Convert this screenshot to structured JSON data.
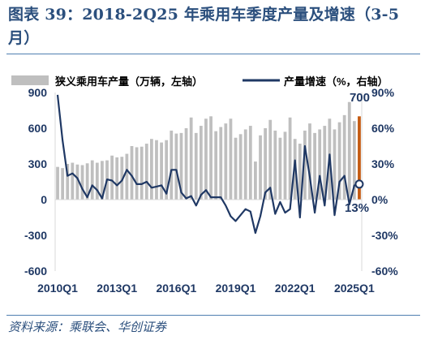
{
  "title": "图表 39：2018-2Q25 年乘用车季度产量及增速（3-5月）",
  "source": "资料来源：乘联会、华创证券",
  "colors": {
    "title": "#2b4f7d",
    "bars": "#bfbfbf",
    "latest_bar": "#c55a11",
    "line": "#1f3864",
    "axis_text": "#1f3864"
  },
  "chart_data": {
    "type": "bar+line",
    "title": "",
    "legend": {
      "position": "top",
      "items": [
        {
          "name": "狭义乘用车产量（万辆，左轴）",
          "kind": "bar"
        },
        {
          "name": "产量增速（%，右轴）",
          "kind": "line"
        }
      ]
    },
    "x_tick_labels": [
      "2010Q1",
      "2013Q1",
      "2016Q1",
      "2019Q1",
      "2022Q1",
      "2025Q1"
    ],
    "left_axis": {
      "min": -600,
      "max": 900,
      "ticks": [
        -600,
        -300,
        0,
        300,
        600,
        900
      ]
    },
    "right_axis": {
      "min": -60,
      "max": 90,
      "ticks": [
        "-60%",
        "-30%",
        "0%",
        "30%",
        "60%",
        "90%"
      ]
    },
    "grid": false,
    "categories": [
      "2010Q1",
      "2010Q2",
      "2010Q3",
      "2010Q4",
      "2011Q1",
      "2011Q2",
      "2011Q3",
      "2011Q4",
      "2012Q1",
      "2012Q2",
      "2012Q3",
      "2012Q4",
      "2013Q1",
      "2013Q2",
      "2013Q3",
      "2013Q4",
      "2014Q1",
      "2014Q2",
      "2014Q3",
      "2014Q4",
      "2015Q1",
      "2015Q2",
      "2015Q3",
      "2015Q4",
      "2016Q1",
      "2016Q2",
      "2016Q3",
      "2016Q4",
      "2017Q1",
      "2017Q2",
      "2017Q3",
      "2017Q4",
      "2018Q1",
      "2018Q2",
      "2018Q3",
      "2018Q4",
      "2019Q1",
      "2019Q2",
      "2019Q3",
      "2019Q4",
      "2020Q1",
      "2020Q2",
      "2020Q3",
      "2020Q4",
      "2021Q1",
      "2021Q2",
      "2021Q3",
      "2021Q4",
      "2022Q1",
      "2022Q2",
      "2022Q3",
      "2022Q4",
      "2023Q1",
      "2023Q2",
      "2023Q3",
      "2023Q4",
      "2024Q1",
      "2024Q2",
      "2024Q3",
      "2024Q4",
      "2025Q1",
      "2025Q2"
    ],
    "series": [
      {
        "name": "狭义乘用车产量（万辆，左轴）",
        "kind": "bar",
        "values": [
          275,
          265,
          300,
          310,
          295,
          290,
          305,
          330,
          310,
          325,
          330,
          370,
          355,
          360,
          385,
          450,
          440,
          445,
          470,
          510,
          500,
          480,
          500,
          580,
          555,
          560,
          600,
          690,
          560,
          620,
          680,
          700,
          575,
          610,
          640,
          680,
          520,
          550,
          590,
          620,
          320,
          540,
          600,
          670,
          580,
          520,
          570,
          690,
          510,
          470,
          580,
          640,
          560,
          590,
          620,
          680,
          590,
          650,
          710,
          820,
          660,
          700
        ]
      },
      {
        "name": "产量增速（%，右轴）",
        "kind": "line",
        "values": [
          88,
          50,
          20,
          22,
          18,
          9,
          2,
          12,
          8,
          1,
          17,
          16,
          12,
          16,
          25,
          20,
          13,
          13,
          15,
          10,
          11,
          12,
          5,
          25,
          25,
          6,
          1,
          3,
          -5,
          4,
          8,
          2,
          2,
          2,
          -5,
          -14,
          -18,
          -13,
          -8,
          -10,
          -28,
          -14,
          6,
          10,
          -12,
          -2,
          -11,
          -8,
          33,
          -15,
          45,
          19,
          -11,
          20,
          -5,
          38,
          -13,
          15,
          20,
          -4,
          12,
          13
        ]
      }
    ],
    "annotations": {
      "latest_bar_value": "700",
      "latest_growth_value": "13%"
    }
  }
}
